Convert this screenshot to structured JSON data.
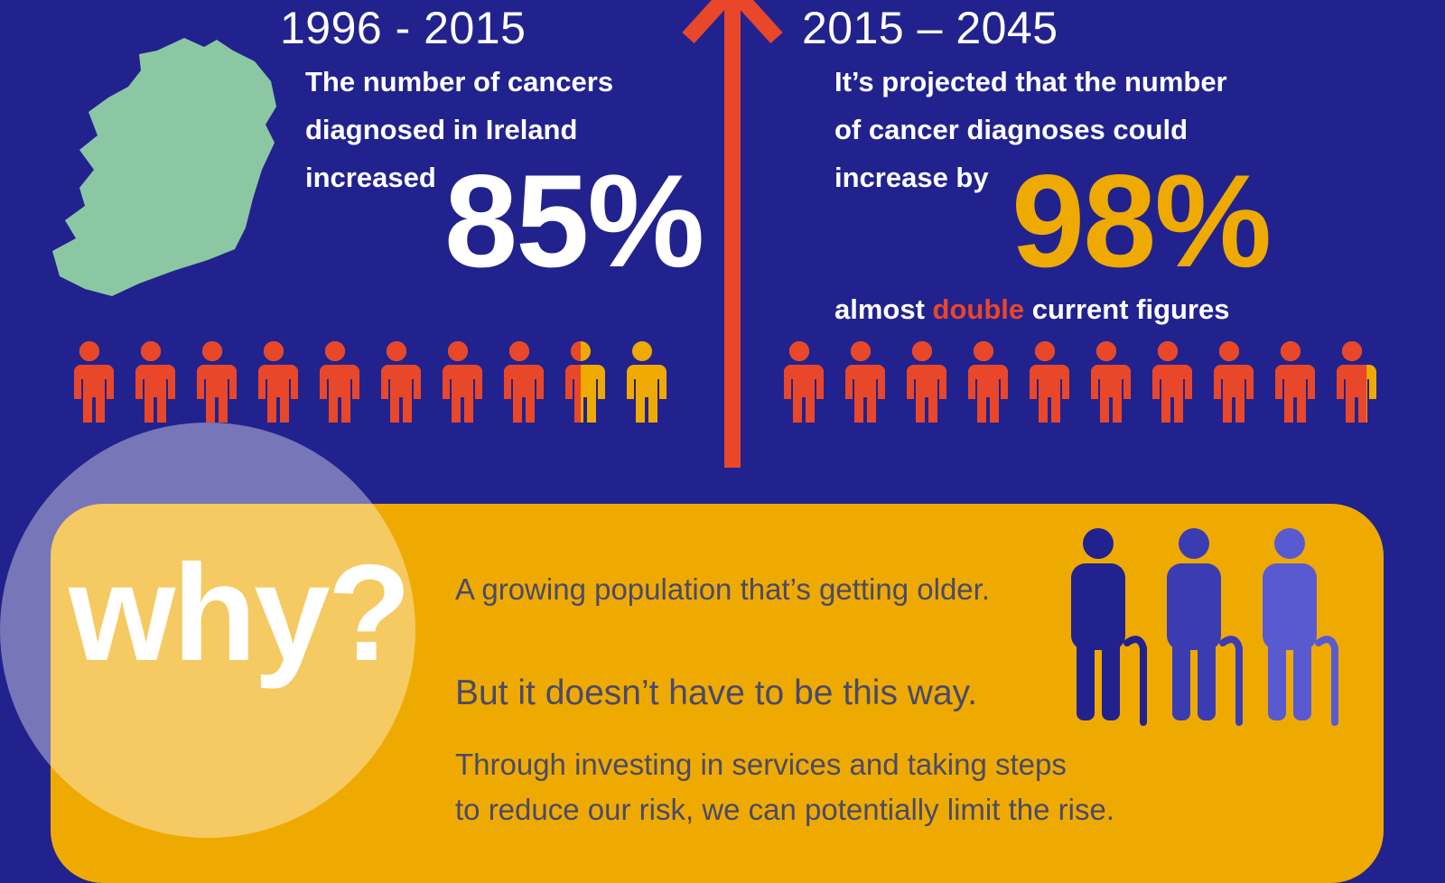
{
  "colors": {
    "background": "#22228e",
    "accent_orange": "#e8472a",
    "accent_gold": "#efaa02",
    "map_green": "#8cc7a4",
    "panel_text": "#4a4a6a"
  },
  "left": {
    "period": "1996 - 2015",
    "line1": "The number of cancers",
    "line2": "diagnosed in Ireland",
    "line3": "increased",
    "percent": "85%",
    "map_icon": "ireland-map-icon",
    "pictogram": {
      "icon": "person-icon",
      "total": 10,
      "filled_orange_fraction": 0.85
    }
  },
  "divider_icon": "arrow-up-icon",
  "right": {
    "period": "2015 – 2045",
    "line1": "It’s projected that the number",
    "line2": "of cancer diagnoses could",
    "line3": "increase by",
    "percent": "98%",
    "note_prefix": "almost ",
    "note_highlight": "double",
    "note_suffix": " current figures",
    "pictogram": {
      "icon": "person-icon",
      "total": 10,
      "filled_orange_fraction": 0.98
    }
  },
  "why": {
    "word": "why?",
    "reason": "A growing population that’s getting older.",
    "statement": "But it doesn’t have to be this way.",
    "body_line1": "Through investing in services and taking steps",
    "body_line2": "to reduce our risk, we can potentially limit the rise.",
    "figures_icon": "elderly-person-with-cane-icon"
  }
}
